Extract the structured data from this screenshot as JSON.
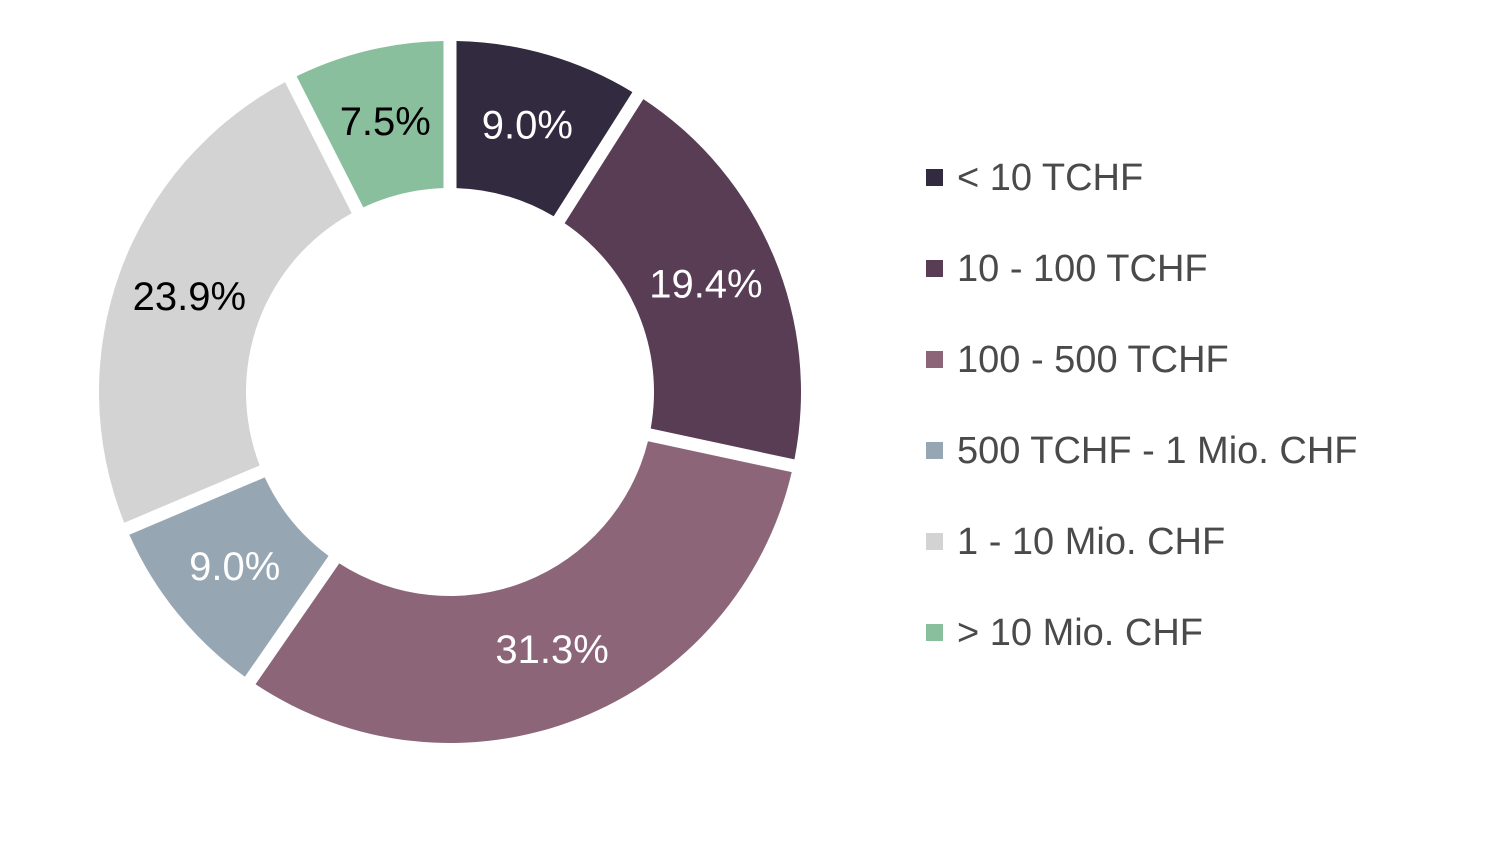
{
  "chart_data": {
    "type": "pie",
    "variant": "donut",
    "title": "",
    "categories": [
      "< 10 TCHF",
      "10 - 100 TCHF",
      "100 - 500 TCHF",
      "500 TCHF - 1 Mio. CHF",
      "1 - 10 Mio. CHF",
      "> 10 Mio. CHF"
    ],
    "values": [
      9.0,
      19.4,
      31.3,
      9.0,
      23.9,
      7.5
    ],
    "data_labels": [
      "9.0%",
      "19.4%",
      "31.3%",
      "9.0%",
      "23.9%",
      "7.5%"
    ],
    "colors": [
      "#322a3f",
      "#583d55",
      "#8c6678",
      "#97a6b3",
      "#d3d3d3",
      "#8abf9d"
    ],
    "label_colors": [
      "#ffffff",
      "#ffffff",
      "#ffffff",
      "#ffffff",
      "#000000",
      "#000000"
    ],
    "legend_position": "right",
    "start_angle": "12 o'clock, clockwise"
  }
}
